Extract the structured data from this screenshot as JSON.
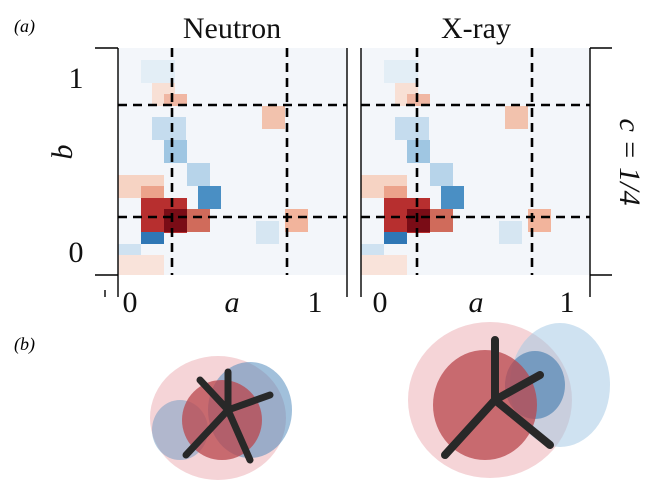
{
  "figure": {
    "panel_a": {
      "label": "(a)",
      "y_label": "b",
      "y_ticks": [
        "1",
        "0"
      ],
      "right_label": "c = 1/4",
      "plots": [
        {
          "title": "Neutron",
          "x_label": "a",
          "x_ticks": [
            "0",
            "1"
          ]
        },
        {
          "title": "X-ray",
          "x_label": "a",
          "x_ticks": [
            "0",
            "1"
          ]
        }
      ]
    },
    "panel_b": {
      "label": "(b)"
    }
  }
}
